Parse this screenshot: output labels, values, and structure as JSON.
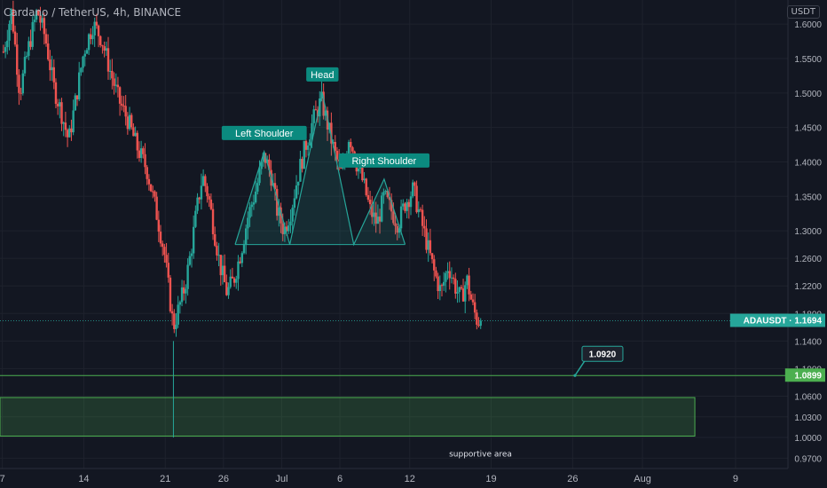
{
  "header": {
    "title": "Cardano / TetherUS, 4h, BINANCE",
    "currency": "USDT"
  },
  "colors": {
    "background": "#131722",
    "grid": "#1e222d",
    "bull": "#26a69a",
    "bear": "#ef5350",
    "pattern": "#26a69a",
    "pattern_label_bg": "#0b8a7f",
    "support": "#4caf50",
    "axis_text": "#b2b5be"
  },
  "chart_data": {
    "type": "candlestick",
    "symbol": "ADAUSDT",
    "timeframe": "4h",
    "exchange": "BINANCE",
    "y_axis": {
      "ticks": [
        "1.6000",
        "1.5500",
        "1.5000",
        "1.4500",
        "1.4000",
        "1.3500",
        "1.3000",
        "1.2600",
        "1.2200",
        "1.1800",
        "1.1400",
        "1.1000",
        "1.0600",
        "1.0300",
        "1.0000",
        "0.9700"
      ],
      "range": [
        0.955,
        1.635
      ]
    },
    "x_axis": {
      "ticks": [
        {
          "label": "7",
          "day": 7
        },
        {
          "label": "14",
          "day": 14
        },
        {
          "label": "21",
          "day": 21
        },
        {
          "label": "26",
          "day": 26
        },
        {
          "label": "Jul",
          "day": 31
        },
        {
          "label": "6",
          "day": 36
        },
        {
          "label": "12",
          "day": 42
        },
        {
          "label": "19",
          "day": 49
        },
        {
          "label": "26",
          "day": 56
        },
        {
          "label": "Aug",
          "day": 62
        },
        {
          "label": "9",
          "day": 70
        }
      ],
      "range_days": [
        6.8,
        74.5
      ],
      "note": "days counted from June 0; Jul 1 = day 31"
    },
    "price_path": [
      [
        7.1,
        1.56
      ],
      [
        7.8,
        1.62
      ],
      [
        8.5,
        1.5
      ],
      [
        9.3,
        1.57
      ],
      [
        10.0,
        1.62
      ],
      [
        10.7,
        1.58
      ],
      [
        11.4,
        1.51
      ],
      [
        12.1,
        1.47
      ],
      [
        12.7,
        1.43
      ],
      [
        13.3,
        1.49
      ],
      [
        14.0,
        1.56
      ],
      [
        14.8,
        1.6
      ],
      [
        15.5,
        1.58
      ],
      [
        16.3,
        1.53
      ],
      [
        17.0,
        1.49
      ],
      [
        17.8,
        1.46
      ],
      [
        18.6,
        1.42
      ],
      [
        19.4,
        1.39
      ],
      [
        20.2,
        1.33
      ],
      [
        20.9,
        1.27
      ],
      [
        21.4,
        1.2
      ],
      [
        21.7,
        1.16
      ],
      [
        22.2,
        1.19
      ],
      [
        22.7,
        1.22
      ],
      [
        23.2,
        1.27
      ],
      [
        23.7,
        1.33
      ],
      [
        24.2,
        1.38
      ],
      [
        24.7,
        1.35
      ],
      [
        25.2,
        1.3
      ],
      [
        25.7,
        1.25
      ],
      [
        26.3,
        1.21
      ],
      [
        26.9,
        1.23
      ],
      [
        27.5,
        1.27
      ],
      [
        28.1,
        1.32
      ],
      [
        28.8,
        1.36
      ],
      [
        29.5,
        1.41
      ],
      [
        30.1,
        1.38
      ],
      [
        30.6,
        1.33
      ],
      [
        31.2,
        1.3
      ],
      [
        31.8,
        1.33
      ],
      [
        32.4,
        1.38
      ],
      [
        33.0,
        1.42
      ],
      [
        33.7,
        1.46
      ],
      [
        34.4,
        1.49
      ],
      [
        35.0,
        1.45
      ],
      [
        35.6,
        1.41
      ],
      [
        36.2,
        1.38
      ],
      [
        36.8,
        1.44
      ],
      [
        37.4,
        1.4
      ],
      [
        38.0,
        1.37
      ],
      [
        38.6,
        1.33
      ],
      [
        39.2,
        1.31
      ],
      [
        39.8,
        1.35
      ],
      [
        40.4,
        1.33
      ],
      [
        41.0,
        1.31
      ],
      [
        41.6,
        1.34
      ],
      [
        42.3,
        1.36
      ],
      [
        42.9,
        1.32
      ],
      [
        43.5,
        1.28
      ],
      [
        44.1,
        1.24
      ],
      [
        44.7,
        1.21
      ],
      [
        45.3,
        1.25
      ],
      [
        45.9,
        1.22
      ],
      [
        46.4,
        1.2
      ],
      [
        46.9,
        1.23
      ],
      [
        47.4,
        1.19
      ],
      [
        47.8,
        1.17
      ],
      [
        48.1,
        1.169
      ]
    ],
    "wicks": [
      {
        "day": 21.7,
        "low": 1.0
      }
    ],
    "pattern": {
      "name": "Head and Shoulders",
      "points": [
        [
          27.0,
          1.28
        ],
        [
          29.5,
          1.415
        ],
        [
          31.7,
          1.28
        ],
        [
          34.5,
          1.5
        ],
        [
          37.2,
          1.28
        ],
        [
          39.8,
          1.375
        ],
        [
          41.6,
          1.28
        ]
      ],
      "labels": [
        {
          "text": "Left Shoulder",
          "day": 29.5,
          "price": 1.415
        },
        {
          "text": "Head",
          "day": 34.5,
          "price": 1.5
        },
        {
          "text": "Right Shoulder",
          "day": 39.8,
          "price": 1.375
        }
      ]
    },
    "horizontal_line": {
      "price": 1.0899
    },
    "last_price_line": {
      "price": 1.1694
    },
    "support_zone": {
      "top": 1.058,
      "bottom": 1.002,
      "start_day": 6.8,
      "end_day": 66.5,
      "label": "supportive area"
    },
    "callout": {
      "text": "1.0920",
      "day": 56.2,
      "price": 1.0899
    },
    "price_tags": [
      {
        "text": "ADAUSDT · 1.1694",
        "price": 1.1694,
        "color": "#26a69a"
      },
      {
        "text": "1.0899",
        "price": 1.0899,
        "color": "#4caf50"
      }
    ]
  }
}
